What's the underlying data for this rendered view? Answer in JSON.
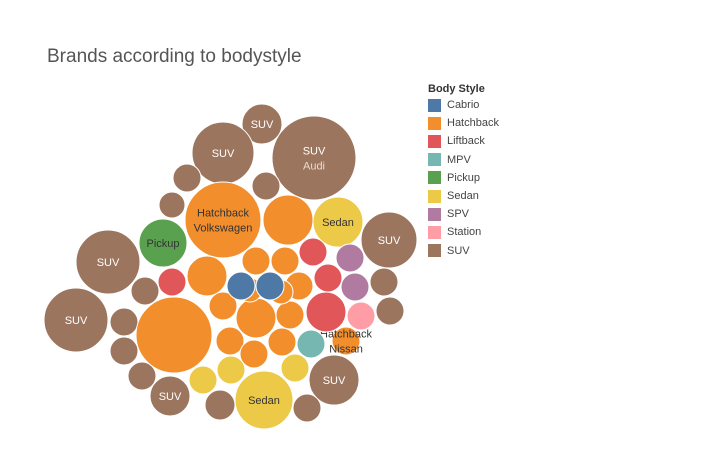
{
  "chart_data": {
    "type": "packed-bubble",
    "title": "Brands according to bodystyle",
    "legend_title": "Body Style",
    "legend_position": "right",
    "colors": {
      "Cabrio": "#4e79a7",
      "Hatchback": "#f28e2b",
      "Liftback": "#e15759",
      "MPV": "#76b7b2",
      "Pickup": "#59a14f",
      "Sedan": "#edc948",
      "SPV": "#b07aa1",
      "Station": "#ff9da7",
      "SUV": "#9c755f"
    },
    "legend": [
      "Cabrio",
      "Hatchback",
      "Liftback",
      "MPV",
      "Pickup",
      "Sedan",
      "SPV",
      "Station",
      "SUV"
    ],
    "bubbles": [
      {
        "category": "SUV",
        "label": "SUV",
        "brand": "Audi"
      },
      {
        "category": "SUV",
        "label": "SUV"
      },
      {
        "category": "SUV",
        "label": "SUV"
      },
      {
        "category": "SUV",
        "label": "SUV"
      },
      {
        "category": "SUV",
        "label": "SUV"
      },
      {
        "category": "SUV",
        "label": "SUV"
      },
      {
        "category": "SUV",
        "label": "SUV"
      },
      {
        "category": "SUV",
        "label": "SUV"
      },
      {
        "category": "SUV"
      },
      {
        "category": "SUV"
      },
      {
        "category": "SUV"
      },
      {
        "category": "SUV"
      },
      {
        "category": "SUV"
      },
      {
        "category": "SUV"
      },
      {
        "category": "SUV"
      },
      {
        "category": "SUV"
      },
      {
        "category": "SUV"
      },
      {
        "category": "SUV"
      },
      {
        "category": "SUV"
      },
      {
        "category": "Hatchback",
        "label": "Hatchback",
        "brand": "Nissan"
      },
      {
        "category": "Hatchback",
        "label": "Hatchback",
        "brand": "Volkswagen"
      },
      {
        "category": "Hatchback"
      },
      {
        "category": "Hatchback"
      },
      {
        "category": "Hatchback"
      },
      {
        "category": "Hatchback"
      },
      {
        "category": "Hatchback"
      },
      {
        "category": "Hatchback"
      },
      {
        "category": "Hatchback"
      },
      {
        "category": "Hatchback"
      },
      {
        "category": "Hatchback"
      },
      {
        "category": "Hatchback"
      },
      {
        "category": "Hatchback"
      },
      {
        "category": "Hatchback"
      },
      {
        "category": "Hatchback"
      },
      {
        "category": "Hatchback"
      },
      {
        "category": "Sedan",
        "label": "Sedan"
      },
      {
        "category": "Sedan",
        "label": "Sedan"
      },
      {
        "category": "Sedan"
      },
      {
        "category": "Sedan"
      },
      {
        "category": "Sedan"
      },
      {
        "category": "Pickup",
        "label": "Pickup"
      },
      {
        "category": "Cabrio"
      },
      {
        "category": "Cabrio"
      },
      {
        "category": "Liftback"
      },
      {
        "category": "Liftback"
      },
      {
        "category": "Liftback"
      },
      {
        "category": "Liftback"
      },
      {
        "category": "MPV"
      },
      {
        "category": "SPV"
      },
      {
        "category": "SPV"
      },
      {
        "category": "Station"
      }
    ]
  }
}
